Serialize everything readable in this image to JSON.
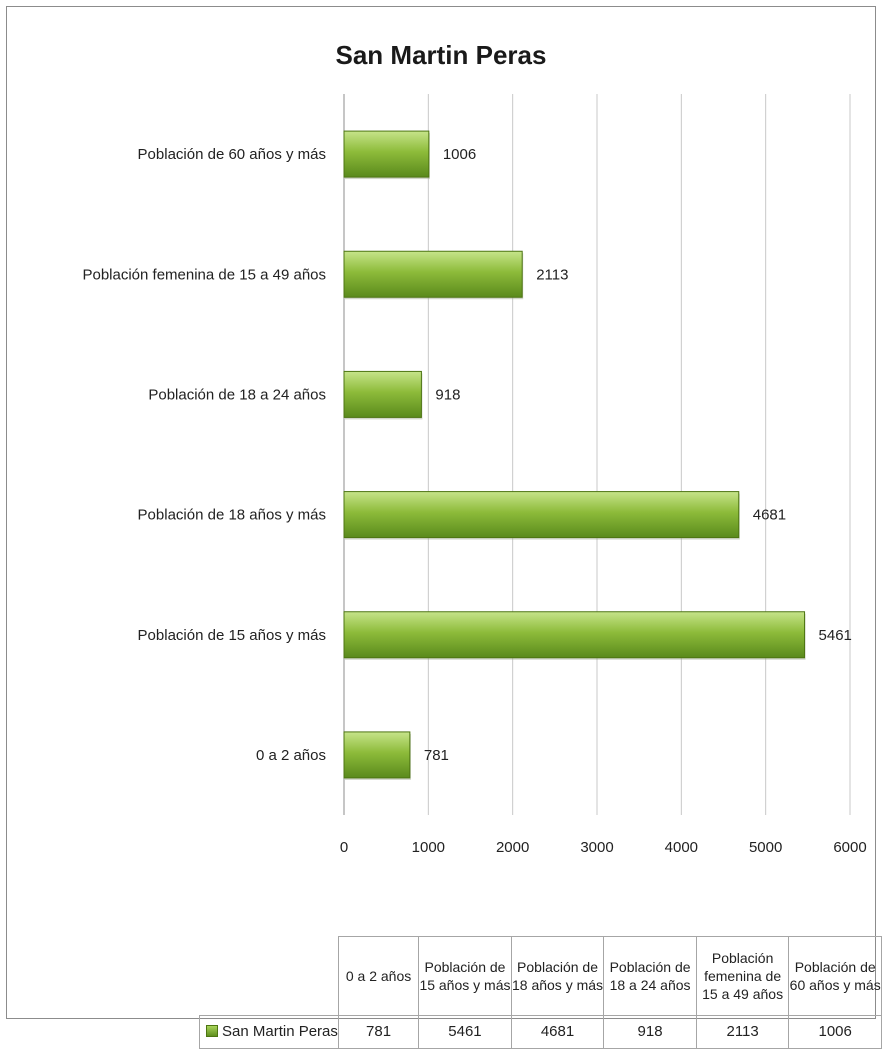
{
  "chart_data": {
    "type": "bar",
    "orientation": "horizontal",
    "title": "San Martin Peras",
    "categories": [
      "0 a 2 años",
      "Población de 15 años y más",
      "Población de 18 años y más",
      "Población de 18 a 24 años",
      "Población femenina de 15 a 49 años",
      "Población de 60 años y más"
    ],
    "series": [
      {
        "name": "San Martin Peras",
        "values": [
          781,
          5461,
          4681,
          918,
          2113,
          1006
        ]
      }
    ],
    "xlim": [
      0,
      6000
    ],
    "xticks": [
      0,
      1000,
      2000,
      3000,
      4000,
      5000,
      6000
    ],
    "grid": true,
    "data_labels": true,
    "bar_color": "#8dbb3a",
    "legend": "in data table",
    "data_table": {
      "headers": [
        "0 a 2 años",
        "Población de 15 años y más",
        "Población de 18 años y más",
        "Población de 18 a 24 años",
        "Población femenina de 15 a 49 años",
        "Población de 60 años y más"
      ],
      "row_label": "San Martin Peras",
      "values": [
        "781",
        "5461",
        "4681",
        "918",
        "2113",
        "1006"
      ]
    }
  }
}
